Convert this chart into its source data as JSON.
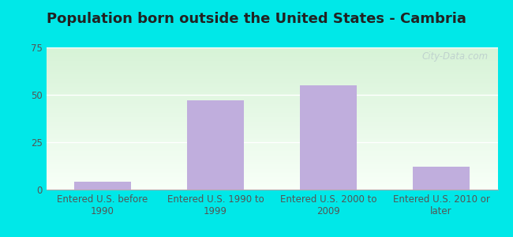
{
  "title": "Population born outside the United States - Cambria",
  "categories": [
    "Entered U.S. before\n1990",
    "Entered U.S. 1990 to\n1999",
    "Entered U.S. 2000 to\n2009",
    "Entered U.S. 2010 or\nlater"
  ],
  "values": [
    4,
    47,
    55,
    12
  ],
  "bar_color": "#c0aedd",
  "ylim": [
    0,
    75
  ],
  "yticks": [
    0,
    25,
    50,
    75
  ],
  "background_outer": "#00e8e8",
  "background_top_color": "#d4edda",
  "background_bottom_color": "#f5fff5",
  "title_fontsize": 13,
  "tick_label_fontsize": 8.5,
  "watermark": "City-Data.com",
  "bar_width": 0.5,
  "grid_color": "#dddddd"
}
